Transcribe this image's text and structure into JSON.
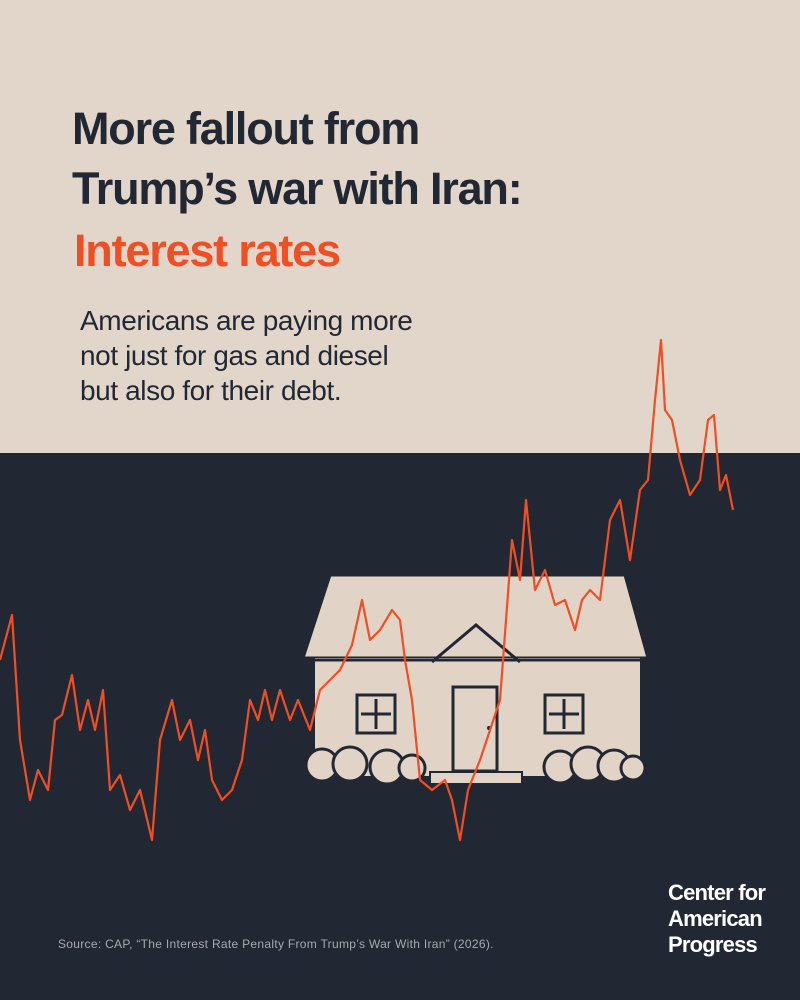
{
  "header": {
    "title_lines": [
      "More fallout from",
      "Trump’s war with Iran:"
    ],
    "highlight": "Interest rates",
    "subtitle_lines": [
      "Americans are paying more",
      "not just for gas and diesel",
      "but also for their debt."
    ]
  },
  "footer": {
    "source": "Source: CAP, “The Interest Rate Penalty From Trump’s War With Iran” (2026).",
    "logo_lines": [
      "Center for",
      "American",
      "Progress"
    ]
  }
}
